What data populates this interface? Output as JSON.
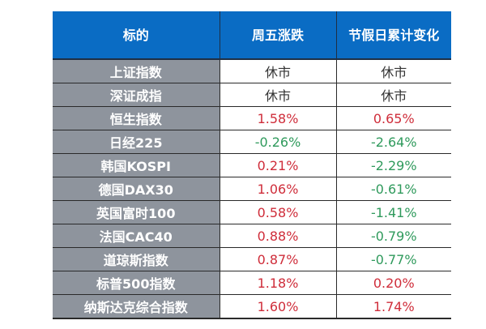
{
  "table": {
    "headers": [
      "标的",
      "周五涨跌",
      "节假日累计变化"
    ],
    "rows": [
      {
        "name": "上证指数",
        "friday": "休市",
        "holiday": "休市",
        "friday_dir": "neutral",
        "holiday_dir": "neutral"
      },
      {
        "name": "深证成指",
        "friday": "休市",
        "holiday": "休市",
        "friday_dir": "neutral",
        "holiday_dir": "neutral"
      },
      {
        "name": "恒生指数",
        "friday": "1.58%",
        "holiday": "0.65%",
        "friday_dir": "up",
        "holiday_dir": "up"
      },
      {
        "name": "日经225",
        "friday": "-0.26%",
        "holiday": "-2.64%",
        "friday_dir": "down",
        "holiday_dir": "down"
      },
      {
        "name": "韩国KOSPI",
        "friday": "0.21%",
        "holiday": "-2.29%",
        "friday_dir": "up",
        "holiday_dir": "down"
      },
      {
        "name": "德国DAX30",
        "friday": "1.06%",
        "holiday": "-0.61%",
        "friday_dir": "up",
        "holiday_dir": "down"
      },
      {
        "name": "英国富时100",
        "friday": "0.58%",
        "holiday": "-1.41%",
        "friday_dir": "up",
        "holiday_dir": "down"
      },
      {
        "name": "法国CAC40",
        "friday": "0.88%",
        "holiday": "-0.79%",
        "friday_dir": "up",
        "holiday_dir": "down"
      },
      {
        "name": "道琼斯指数",
        "friday": "0.87%",
        "holiday": "-0.77%",
        "friday_dir": "up",
        "holiday_dir": "down"
      },
      {
        "name": "标普500指数",
        "friday": "1.18%",
        "holiday": "0.20%",
        "friday_dir": "up",
        "holiday_dir": "up"
      },
      {
        "name": "纳斯达克综合指数",
        "friday": "1.60%",
        "holiday": "1.74%",
        "friday_dir": "up",
        "holiday_dir": "up"
      }
    ]
  },
  "colors": {
    "header_bg": "#0a6cc4",
    "name_cell_bg": "#8e949d",
    "up": "#cf2d3a",
    "down": "#2f9a5c",
    "neutral": "#333333"
  }
}
